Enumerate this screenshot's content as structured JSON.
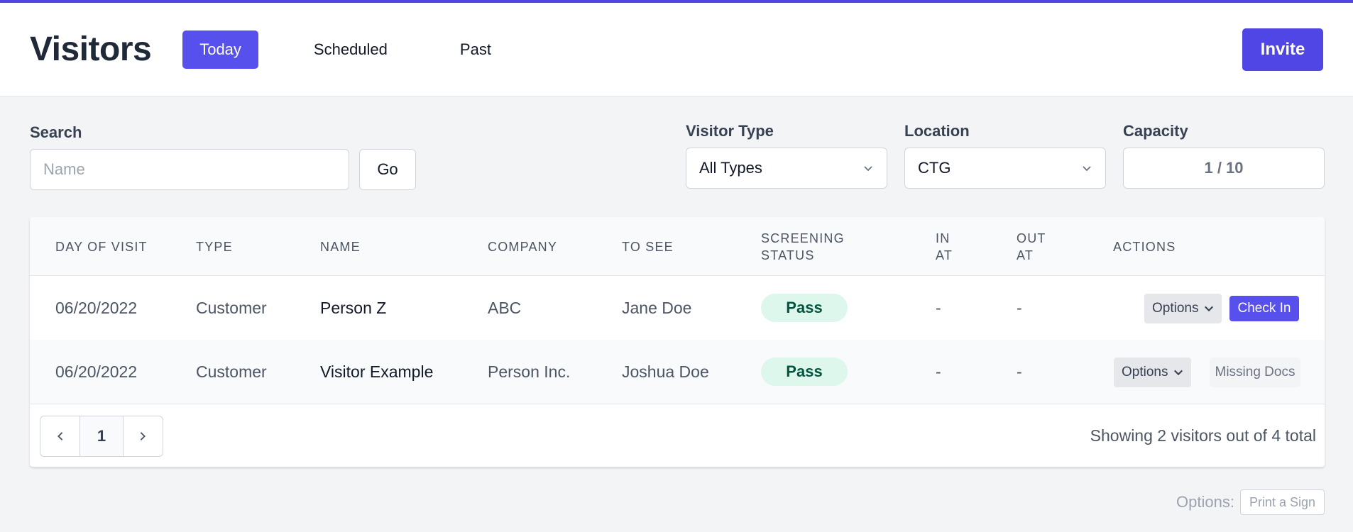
{
  "header": {
    "title": "Visitors",
    "tabs": [
      {
        "label": "Today",
        "active": true
      },
      {
        "label": "Scheduled",
        "active": false
      },
      {
        "label": "Past",
        "active": false
      }
    ],
    "invite_label": "Invite"
  },
  "filters": {
    "search_label": "Search",
    "search_placeholder": "Name",
    "search_value": "",
    "go_label": "Go",
    "visitor_type_label": "Visitor Type",
    "visitor_type_value": "All Types",
    "location_label": "Location",
    "location_value": "CTG",
    "capacity_label": "Capacity",
    "capacity_value": "1 / 10"
  },
  "table": {
    "headers": {
      "day": "DAY OF VISIT",
      "type": "TYPE",
      "name": "NAME",
      "company": "COMPANY",
      "to_see": "TO SEE",
      "screening_1": "SCREENING",
      "screening_2": "STATUS",
      "in_1": "IN",
      "in_2": "AT",
      "out_1": "OUT",
      "out_2": "AT",
      "actions": "ACTIONS"
    },
    "rows": [
      {
        "day": "06/20/2022",
        "type": "Customer",
        "name": "Person Z",
        "company": "ABC",
        "to_see": "Jane Doe",
        "screening": "Pass",
        "in_at": "-",
        "out_at": "-",
        "options_label": "Options",
        "action_label": "Check In"
      },
      {
        "day": "06/20/2022",
        "type": "Customer",
        "name": "Visitor Example",
        "company": "Person Inc.",
        "to_see": "Joshua Doe",
        "screening": "Pass",
        "in_at": "-",
        "out_at": "-",
        "options_label": "Options",
        "action_label": "Missing Docs"
      }
    ],
    "pagination": {
      "current_page": "1"
    },
    "summary": "Showing 2 visitors out of 4 total"
  },
  "footer": {
    "options_label": "Options:",
    "print_sign_label": "Print a Sign"
  },
  "colors": {
    "accent": "#4f46e5",
    "pass_bg": "#def7ec",
    "pass_text": "#03543f"
  }
}
